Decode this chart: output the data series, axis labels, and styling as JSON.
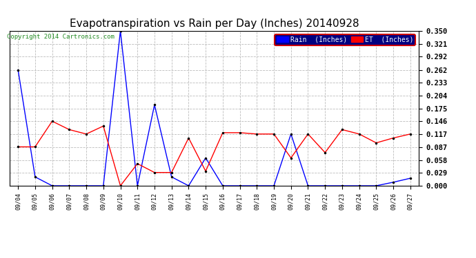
{
  "title": "Evapotranspiration vs Rain per Day (Inches) 20140928",
  "copyright": "Copyright 2014 Cartronics.com",
  "dates": [
    "09/04",
    "09/05",
    "09/06",
    "09/07",
    "09/08",
    "09/09",
    "09/10",
    "09/11",
    "09/12",
    "09/13",
    "09/14",
    "09/15",
    "09/16",
    "09/17",
    "09/18",
    "09/19",
    "09/20",
    "09/21",
    "09/22",
    "09/23",
    "09/24",
    "09/25",
    "09/26",
    "09/27"
  ],
  "rain": [
    0.262,
    0.02,
    0.0,
    0.0,
    0.0,
    0.0,
    0.35,
    0.0,
    0.183,
    0.02,
    0.0,
    0.063,
    0.0,
    0.0,
    0.0,
    0.0,
    0.117,
    0.0,
    0.0,
    0.0,
    0.0,
    0.0,
    0.008,
    0.017
  ],
  "et": [
    0.088,
    0.088,
    0.146,
    0.127,
    0.117,
    0.135,
    0.0,
    0.05,
    0.03,
    0.03,
    0.108,
    0.033,
    0.12,
    0.12,
    0.117,
    0.117,
    0.063,
    0.117,
    0.075,
    0.127,
    0.117,
    0.097,
    0.108,
    0.117
  ],
  "ylim": [
    0.0,
    0.35
  ],
  "yticks": [
    0.0,
    0.029,
    0.058,
    0.087,
    0.117,
    0.146,
    0.175,
    0.204,
    0.233,
    0.262,
    0.292,
    0.321,
    0.35
  ],
  "rain_color": "#0000ff",
  "et_color": "#ff0000",
  "background_color": "#ffffff",
  "grid_color": "#bbbbbb",
  "title_fontsize": 11,
  "legend_rain_label": "Rain  (Inches)",
  "legend_et_label": "ET  (Inches)",
  "legend_bg": "#000080",
  "legend_border_color": "#cc0000",
  "copyright_color": "#228B22"
}
